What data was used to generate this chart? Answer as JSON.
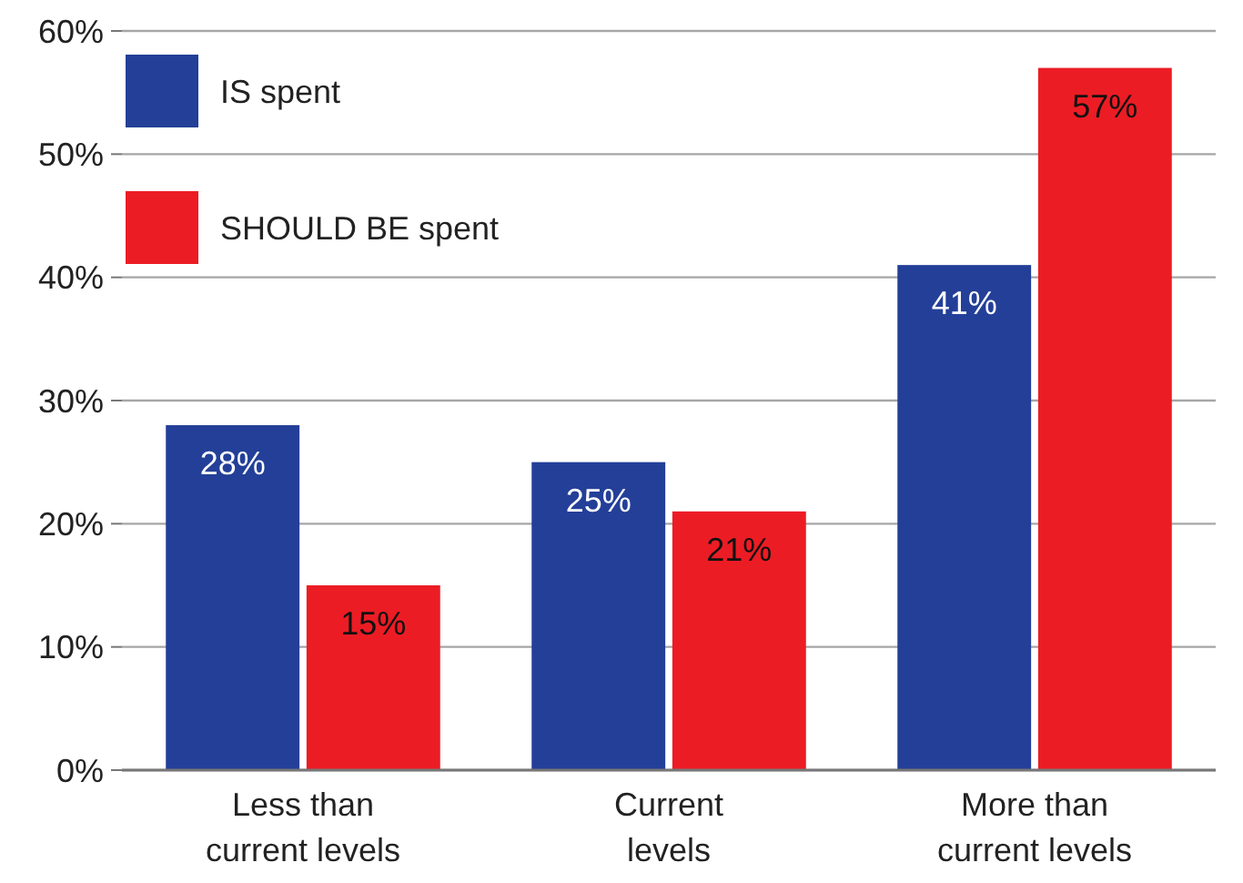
{
  "chart_data": {
    "type": "bar",
    "categories": [
      "Less than\ncurrent levels",
      "Current\nlevels",
      "More than\ncurrent levels"
    ],
    "series": [
      {
        "name": "IS spent",
        "color": "#233f98",
        "values": [
          28,
          25,
          41
        ]
      },
      {
        "name": "SHOULD BE spent",
        "color": "#ec1c24",
        "values": [
          15,
          21,
          57
        ]
      }
    ],
    "ylim": [
      0,
      60
    ],
    "yticks": [
      {
        "value": 0,
        "label": "0%"
      },
      {
        "value": 10,
        "label": "10%"
      },
      {
        "value": 20,
        "label": "20%"
      },
      {
        "value": 30,
        "label": "30%"
      },
      {
        "value": 40,
        "label": "40%"
      },
      {
        "value": 50,
        "label": "50%"
      },
      {
        "value": 60,
        "label": "60%"
      }
    ],
    "value_labels": [
      [
        "28%",
        "25%",
        "41%"
      ],
      [
        "15%",
        "21%",
        "57%"
      ]
    ],
    "grid": "y",
    "legend": "top left"
  }
}
